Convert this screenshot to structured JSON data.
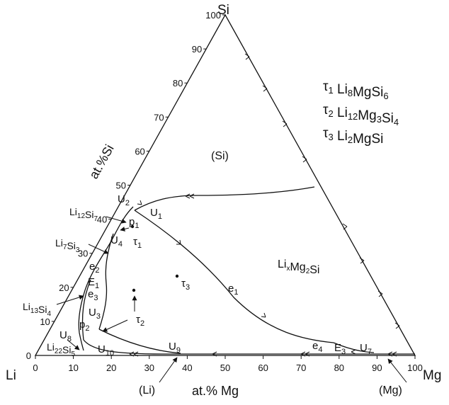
{
  "corners": {
    "top": "Si",
    "left": "Li",
    "right": "Mg"
  },
  "axis_labels": {
    "left": "at.%Si",
    "bottom": "at.% Mg"
  },
  "ticks_bottom": [
    "0",
    "10",
    "20",
    "30",
    "40",
    "50",
    "60",
    "70",
    "80",
    "90",
    "100"
  ],
  "ticks_left": [
    "0",
    "10",
    "20",
    "30",
    "40",
    "50",
    "60",
    "70",
    "80",
    "90",
    "100"
  ],
  "legend": [
    {
      "sym": "τ",
      "idx": "1",
      "formula": [
        [
          "Li",
          ""
        ],
        [
          "8",
          "s"
        ],
        [
          "MgSi",
          ""
        ],
        [
          "6",
          "s"
        ]
      ]
    },
    {
      "sym": "τ",
      "idx": "2",
      "formula": [
        [
          "Li",
          ""
        ],
        [
          "12",
          "s"
        ],
        [
          "Mg",
          ""
        ],
        [
          "3",
          "s"
        ],
        [
          "Si",
          ""
        ],
        [
          "4",
          "s"
        ]
      ]
    },
    {
      "sym": "τ",
      "idx": "3",
      "formula": [
        [
          "Li",
          ""
        ],
        [
          "2",
          "s"
        ],
        [
          "MgSi",
          ""
        ]
      ]
    }
  ],
  "regions": {
    "si": "(Si)",
    "li": "(Li)",
    "mg": "(Mg)"
  },
  "lixmg2si": [
    [
      "Li",
      ""
    ],
    [
      "x",
      "s"
    ],
    [
      "Mg",
      ""
    ],
    [
      "2",
      "s"
    ],
    [
      "Si",
      ""
    ]
  ],
  "phases": {
    "li12si7": [
      [
        "Li",
        ""
      ],
      [
        "12",
        "s"
      ],
      [
        "Si",
        ""
      ],
      [
        "7",
        "s"
      ]
    ],
    "li7si3": [
      [
        "Li",
        ""
      ],
      [
        "7",
        "s"
      ],
      [
        "Si",
        ""
      ],
      [
        "3",
        "s"
      ]
    ],
    "li13si4": [
      [
        "Li",
        ""
      ],
      [
        "13",
        "s"
      ],
      [
        "Si",
        ""
      ],
      [
        "4",
        "s"
      ]
    ],
    "li22si5": [
      [
        "Li",
        ""
      ],
      [
        "22",
        "s"
      ],
      [
        "Si",
        ""
      ],
      [
        "5",
        "s"
      ]
    ]
  },
  "points": {
    "U1": [
      "U",
      "1"
    ],
    "U2": [
      "U",
      "2"
    ],
    "U3": [
      "U",
      "3"
    ],
    "U4": [
      "U",
      "4"
    ],
    "U7": [
      "U",
      "7"
    ],
    "U8": [
      "U",
      "8"
    ],
    "U9": [
      "U",
      "9"
    ],
    "U10": [
      "U",
      "10"
    ],
    "E1": [
      "E",
      "1"
    ],
    "E3": [
      "E",
      "3"
    ],
    "e1": [
      "e",
      "1"
    ],
    "e2": [
      "e",
      "2"
    ],
    "e3": [
      "e",
      "3"
    ],
    "e4": [
      "e",
      "4"
    ],
    "p1": [
      "p",
      "1"
    ],
    "p2": [
      "p",
      "2"
    ],
    "t1": [
      "τ",
      "1"
    ],
    "t2": [
      "τ",
      "2"
    ],
    "t3": [
      "τ",
      "3"
    ]
  }
}
